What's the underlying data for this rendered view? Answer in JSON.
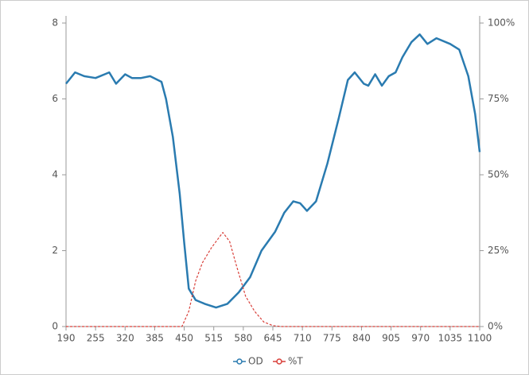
{
  "chart_data": {
    "type": "line",
    "xlim": [
      190,
      1100
    ],
    "xticks": [
      190,
      255,
      320,
      385,
      450,
      515,
      580,
      645,
      710,
      775,
      840,
      905,
      970,
      1035,
      1100
    ],
    "ylim": [
      0,
      8
    ],
    "yticks": [
      0,
      2,
      4,
      6,
      8
    ],
    "y2lim": [
      0,
      100
    ],
    "y2ticks": [
      {
        "value": 0,
        "label": "0%"
      },
      {
        "value": 25,
        "label": "25%"
      },
      {
        "value": 50,
        "label": "50%"
      },
      {
        "value": 75,
        "label": "75%"
      },
      {
        "value": 100,
        "label": "100%"
      }
    ],
    "legend": "bottom",
    "series": [
      {
        "name": "OD",
        "color": "#2a7bb0",
        "axis": "y",
        "x": [
          190,
          210,
          230,
          255,
          275,
          285,
          300,
          320,
          335,
          355,
          375,
          400,
          410,
          425,
          440,
          450,
          460,
          475,
          495,
          520,
          545,
          570,
          595,
          620,
          650,
          670,
          690,
          705,
          720,
          740,
          765,
          790,
          810,
          825,
          845,
          855,
          870,
          885,
          900,
          915,
          930,
          950,
          968,
          985,
          1005,
          1035,
          1055,
          1075,
          1090,
          1100
        ],
        "values": [
          6.4,
          6.7,
          6.6,
          6.55,
          6.65,
          6.7,
          6.4,
          6.65,
          6.55,
          6.55,
          6.6,
          6.45,
          6.0,
          5.0,
          3.5,
          2.2,
          1.0,
          0.7,
          0.6,
          0.5,
          0.6,
          0.9,
          1.3,
          2.0,
          2.5,
          3.0,
          3.3,
          3.25,
          3.05,
          3.3,
          4.3,
          5.5,
          6.5,
          6.7,
          6.4,
          6.35,
          6.65,
          6.35,
          6.6,
          6.7,
          7.1,
          7.5,
          7.7,
          7.45,
          7.6,
          7.45,
          7.3,
          6.6,
          5.6,
          4.6
        ]
      },
      {
        "name": "%T",
        "color": "#d9403a",
        "axis": "y2",
        "x": [
          190,
          300,
          445,
          460,
          475,
          490,
          510,
          535,
          550,
          565,
          585,
          605,
          625,
          645,
          665,
          800,
          1100
        ],
        "values": [
          0,
          0,
          0,
          5,
          15,
          21,
          26,
          31,
          28,
          20,
          10,
          5,
          1.5,
          0.3,
          0,
          0,
          0
        ]
      }
    ]
  }
}
